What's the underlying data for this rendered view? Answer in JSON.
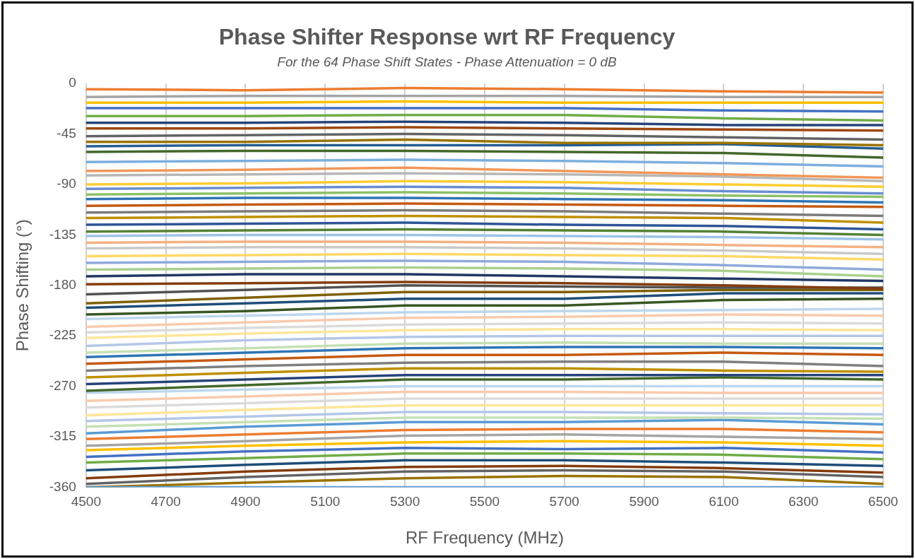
{
  "chart_data": {
    "type": "line",
    "title": "Phase Shifter Response wrt RF Frequency",
    "subtitle": "For the 64 Phase Shift States - Phase Attenuation = 0 dB",
    "xlabel": "RF Frequency (MHz)",
    "ylabel": "Phase Shifting (°)",
    "x": [
      4500,
      4900,
      5300,
      5700,
      6100,
      6500
    ],
    "xlim": [
      4500,
      6500
    ],
    "xticks": [
      4500,
      4700,
      4900,
      5100,
      5300,
      5500,
      5700,
      5900,
      6100,
      6300,
      6500
    ],
    "ylim": [
      -360,
      0
    ],
    "yticks": [
      0,
      -45,
      -90,
      -135,
      -180,
      -225,
      -270,
      -315,
      -360
    ],
    "grid": "x",
    "legend": false,
    "marker": "none",
    "line_style": "solid",
    "series": [
      {
        "color": "#5b9bd5",
        "values": [
          -360,
          -360,
          -360,
          -360,
          -360,
          -360
        ]
      },
      {
        "color": "#ed7d31",
        "values": [
          -5,
          -6,
          -4,
          -5,
          -7,
          -8
        ]
      },
      {
        "color": "#a5a5a5",
        "values": [
          -12,
          -11,
          -11,
          -11,
          -12,
          -12
        ]
      },
      {
        "color": "#ffc000",
        "values": [
          -17,
          -17,
          -16,
          -17,
          -17,
          -17
        ]
      },
      {
        "color": "#4472c4",
        "values": [
          -22,
          -22,
          -22,
          -22,
          -24,
          -25
        ]
      },
      {
        "color": "#70ad47",
        "values": [
          -29,
          -29,
          -28,
          -28,
          -31,
          -33
        ]
      },
      {
        "color": "#264478",
        "values": [
          -35,
          -35,
          -34,
          -35,
          -37,
          -37
        ]
      },
      {
        "color": "#9e480e",
        "values": [
          -40,
          -40,
          -39,
          -40,
          -41,
          -42
        ]
      },
      {
        "color": "#636363",
        "values": [
          -47,
          -46,
          -45,
          -46,
          -48,
          -50
        ]
      },
      {
        "color": "#997300",
        "values": [
          -52,
          -52,
          -50,
          -53,
          -53,
          -55
        ]
      },
      {
        "color": "#255e91",
        "values": [
          -56,
          -55,
          -55,
          -55,
          -54,
          -58
        ]
      },
      {
        "color": "#43682b",
        "values": [
          -61,
          -60,
          -60,
          -61,
          -62,
          -66
        ]
      },
      {
        "color": "#7cafdd",
        "values": [
          -70,
          -69,
          -68,
          -69,
          -71,
          -74
        ]
      },
      {
        "color": "#f1975a",
        "values": [
          -78,
          -77,
          -75,
          -78,
          -81,
          -84
        ]
      },
      {
        "color": "#b7b7b7",
        "values": [
          -82,
          -81,
          -80,
          -81,
          -83,
          -87
        ]
      },
      {
        "color": "#ffcd33",
        "values": [
          -90,
          -89,
          -87,
          -88,
          -90,
          -92
        ]
      },
      {
        "color": "#698ed0",
        "values": [
          -94,
          -93,
          -92,
          -93,
          -96,
          -98
        ]
      },
      {
        "color": "#8cc168",
        "values": [
          -99,
          -98,
          -97,
          -98,
          -100,
          -101
        ]
      },
      {
        "color": "#2e75b6",
        "values": [
          -103,
          -102,
          -102,
          -103,
          -104,
          -106
        ]
      },
      {
        "color": "#c55a11",
        "values": [
          -109,
          -108,
          -107,
          -108,
          -109,
          -110
        ]
      },
      {
        "color": "#7b7b7b",
        "values": [
          -115,
          -114,
          -113,
          -114,
          -116,
          -118
        ]
      },
      {
        "color": "#bf9000",
        "values": [
          -120,
          -119,
          -118,
          -119,
          -120,
          -124
        ]
      },
      {
        "color": "#2f5597",
        "values": [
          -126,
          -125,
          -124,
          -126,
          -127,
          -130
        ]
      },
      {
        "color": "#548235",
        "values": [
          -132,
          -131,
          -130,
          -131,
          -132,
          -135
        ]
      },
      {
        "color": "#9dc3e6",
        "values": [
          -136,
          -135,
          -135,
          -136,
          -137,
          -139
        ]
      },
      {
        "color": "#f4b183",
        "values": [
          -142,
          -141,
          -141,
          -142,
          -144,
          -146
        ]
      },
      {
        "color": "#c9c9c9",
        "values": [
          -147,
          -146,
          -146,
          -147,
          -149,
          -152
        ]
      },
      {
        "color": "#ffd966",
        "values": [
          -154,
          -153,
          -152,
          -153,
          -154,
          -157
        ]
      },
      {
        "color": "#8faadc",
        "values": [
          -160,
          -159,
          -158,
          -159,
          -162,
          -166
        ]
      },
      {
        "color": "#a9d18e",
        "values": [
          -166,
          -165,
          -164,
          -165,
          -167,
          -172
        ]
      },
      {
        "color": "#203864",
        "values": [
          -172,
          -170,
          -170,
          -172,
          -174,
          -176
        ]
      },
      {
        "color": "#843c0c",
        "values": [
          -179,
          -178,
          -177,
          -178,
          -180,
          -183
        ]
      },
      {
        "color": "#525252",
        "values": [
          -188,
          -184,
          -180,
          -181,
          -182,
          -182
        ]
      },
      {
        "color": "#7f6000",
        "values": [
          -196,
          -191,
          -186,
          -186,
          -184,
          -184
        ]
      },
      {
        "color": "#1f4e79",
        "values": [
          -200,
          -196,
          -192,
          -192,
          -187,
          -187
        ]
      },
      {
        "color": "#385723",
        "values": [
          -206,
          -203,
          -198,
          -198,
          -193,
          -192
        ]
      },
      {
        "color": "#bdd7ee",
        "values": [
          -210,
          -207,
          -204,
          -203,
          -202,
          -201
        ]
      },
      {
        "color": "#f8cbad",
        "values": [
          -217,
          -213,
          -209,
          -208,
          -206,
          -207
        ]
      },
      {
        "color": "#dbdbdb",
        "values": [
          -222,
          -218,
          -215,
          -214,
          -213,
          -214
        ]
      },
      {
        "color": "#ffe699",
        "values": [
          -227,
          -223,
          -220,
          -219,
          -219,
          -220
        ]
      },
      {
        "color": "#b4c7e7",
        "values": [
          -234,
          -229,
          -226,
          -225,
          -225,
          -225
        ]
      },
      {
        "color": "#c5e0b4",
        "values": [
          -240,
          -236,
          -232,
          -231,
          -232,
          -232
        ]
      },
      {
        "color": "#2e75b6",
        "values": [
          -244,
          -240,
          -236,
          -235,
          -235,
          -236
        ]
      },
      {
        "color": "#c55a11",
        "values": [
          -250,
          -246,
          -242,
          -242,
          -240,
          -242
        ]
      },
      {
        "color": "#7f7f7f",
        "values": [
          -256,
          -252,
          -249,
          -248,
          -248,
          -252
        ]
      },
      {
        "color": "#bf9000",
        "values": [
          -262,
          -258,
          -254,
          -254,
          -256,
          -257
        ]
      },
      {
        "color": "#264478",
        "values": [
          -268,
          -264,
          -260,
          -260,
          -260,
          -260
        ]
      },
      {
        "color": "#43682b",
        "values": [
          -274,
          -269,
          -264,
          -264,
          -262,
          -264
        ]
      },
      {
        "color": "#bdd7ee",
        "values": [
          -276,
          -273,
          -270,
          -270,
          -270,
          -270
        ]
      },
      {
        "color": "#f8cbad",
        "values": [
          -283,
          -279,
          -275,
          -275,
          -276,
          -276
        ]
      },
      {
        "color": "#dbdbdb",
        "values": [
          -289,
          -285,
          -281,
          -281,
          -281,
          -281
        ]
      },
      {
        "color": "#ffe699",
        "values": [
          -296,
          -291,
          -287,
          -287,
          -287,
          -287
        ]
      },
      {
        "color": "#b4c7e7",
        "values": [
          -301,
          -297,
          -293,
          -293,
          -294,
          -295
        ]
      },
      {
        "color": "#c5e0b4",
        "values": [
          -306,
          -302,
          -298,
          -298,
          -298,
          -299
        ]
      },
      {
        "color": "#5b9bd5",
        "values": [
          -312,
          -306,
          -302,
          -302,
          -300,
          -304
        ]
      },
      {
        "color": "#ed7d31",
        "values": [
          -317,
          -313,
          -309,
          -308,
          -308,
          -311
        ]
      },
      {
        "color": "#a5a5a5",
        "values": [
          -323,
          -319,
          -314,
          -313,
          -315,
          -317
        ]
      },
      {
        "color": "#ffc000",
        "values": [
          -327,
          -323,
          -320,
          -319,
          -320,
          -323
        ]
      },
      {
        "color": "#4472c4",
        "values": [
          -333,
          -328,
          -325,
          -326,
          -325,
          -329
        ]
      },
      {
        "color": "#70ad47",
        "values": [
          -338,
          -334,
          -330,
          -330,
          -331,
          -335
        ]
      },
      {
        "color": "#1f4e79",
        "values": [
          -345,
          -340,
          -336,
          -336,
          -338,
          -341
        ]
      },
      {
        "color": "#843c0c",
        "values": [
          -352,
          -346,
          -342,
          -341,
          -343,
          -347
        ]
      },
      {
        "color": "#636363",
        "values": [
          -357,
          -351,
          -346,
          -345,
          -346,
          -351
        ]
      },
      {
        "color": "#997300",
        "values": [
          -360,
          -356,
          -352,
          -350,
          -351,
          -357
        ]
      }
    ]
  }
}
